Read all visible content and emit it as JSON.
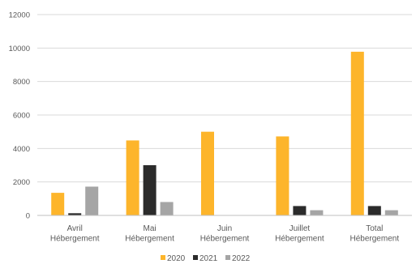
{
  "chart_data": {
    "type": "bar",
    "title": "",
    "xlabel": "",
    "ylabel": "",
    "ylim": [
      0,
      12000
    ],
    "yticks": [
      0,
      2000,
      4000,
      6000,
      8000,
      10000,
      12000
    ],
    "grid": true,
    "legend_position": "bottom",
    "categories": [
      [
        "Avril",
        "Hébergement"
      ],
      [
        "Mai",
        "Hébergement"
      ],
      [
        "Juin",
        "Hébergement"
      ],
      [
        "Juillet",
        "Hébergement"
      ],
      [
        "Total",
        "Hébergement"
      ]
    ],
    "series": [
      {
        "name": "2020",
        "color": "#FDB52B",
        "values": [
          1350,
          4480,
          5000,
          4720,
          9780
        ]
      },
      {
        "name": "2021",
        "color": "#2B2B2B",
        "values": [
          130,
          3000,
          0,
          560,
          560
        ]
      },
      {
        "name": "2022",
        "color": "#A5A5A5",
        "values": [
          1720,
          800,
          0,
          310,
          310
        ]
      }
    ]
  }
}
